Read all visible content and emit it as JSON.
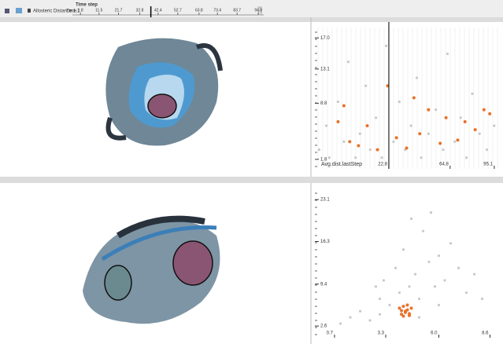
{
  "toolbar": {
    "label": "Allosteric Distance 1.1",
    "mode": "Time",
    "timestep_label": "Time step"
  },
  "timeline": {
    "xlim": [
      -2.4,
      97.6
    ],
    "cursor": 38.6,
    "ticks": [
      1.8,
      11.5,
      21.7,
      32.8,
      42.4,
      52.7,
      63.8,
      73.4,
      83.7,
      94.8
    ]
  },
  "plots": [
    {
      "x_label": "Avg.dist.lastStep",
      "xlim": [
        -27.9,
        98.9
      ],
      "ylim": [
        0.6,
        18.3
      ],
      "cursor": 22.8,
      "xticks": [
        22.8,
        64.8,
        95.1
      ],
      "yticks": [
        {
          "value": 17,
          "label": "17.0"
        },
        13.1,
        8.8,
        1.8
      ],
      "points": {
        "x": [
          -25,
          -20,
          -18,
          -12,
          -8,
          -5,
          0,
          3,
          7,
          10,
          14,
          18,
          21,
          26,
          30,
          34,
          38,
          42,
          45,
          50,
          55,
          60,
          63,
          68,
          72,
          76,
          80,
          85,
          90,
          95
        ],
        "y": [
          3,
          6,
          2,
          9,
          4,
          14,
          2,
          5,
          11,
          3,
          7,
          2,
          16,
          4,
          9,
          3,
          6,
          12,
          2,
          5,
          8,
          3,
          15,
          4,
          7,
          2,
          10,
          5,
          3,
          6
        ]
      },
      "highlight": {
        "x": [
          -12,
          -8,
          -4,
          2,
          8,
          15,
          22,
          28,
          35,
          40,
          44,
          50,
          58,
          62,
          70,
          75,
          82,
          88,
          92
        ],
        "y": [
          6.5,
          8.5,
          4,
          3.5,
          6,
          3,
          11,
          4.5,
          3.2,
          9.5,
          5,
          8,
          3.8,
          7,
          4.2,
          6.5,
          5.5,
          8,
          7.5
        ]
      }
    },
    {
      "xlim": [
        -0.3,
        9.1
      ],
      "ylim": [
        0.7,
        24.9
      ],
      "xticks": [
        0.7,
        3.3,
        {
          "value": 6,
          "label": "6.0"
        },
        8.6
      ],
      "yticks": [
        23.1,
        16.3,
        9.4,
        2.6
      ],
      "points": {
        "x": [
          1,
          1.5,
          2,
          2.5,
          3,
          3.2,
          3.5,
          3.8,
          4,
          4.2,
          4.5,
          4.8,
          5,
          5.2,
          5.5,
          5.8,
          6,
          6.3,
          6.6,
          7,
          7.4,
          7.8,
          8.2,
          3,
          4,
          5,
          6,
          2.8,
          4.6,
          5.6
        ],
        "y": [
          3,
          4,
          5,
          3.5,
          7,
          10,
          6,
          12,
          8,
          15,
          9,
          11,
          7,
          18,
          13,
          9,
          14,
          10,
          16,
          12,
          8,
          11,
          7,
          4.5,
          5.5,
          4,
          6,
          9,
          20,
          21
        ]
      },
      "highlight": {
        "x": [
          4.0,
          4.1,
          4.2,
          4.3,
          4.4,
          4.5,
          4.6,
          4.2,
          4.4,
          4.3,
          4.5,
          4.1
        ],
        "y": [
          5.5,
          4.5,
          5.8,
          4.8,
          5.2,
          4.6,
          5.5,
          4.2,
          6.0,
          5.0,
          4.3,
          5.1
        ]
      }
    }
  ]
}
